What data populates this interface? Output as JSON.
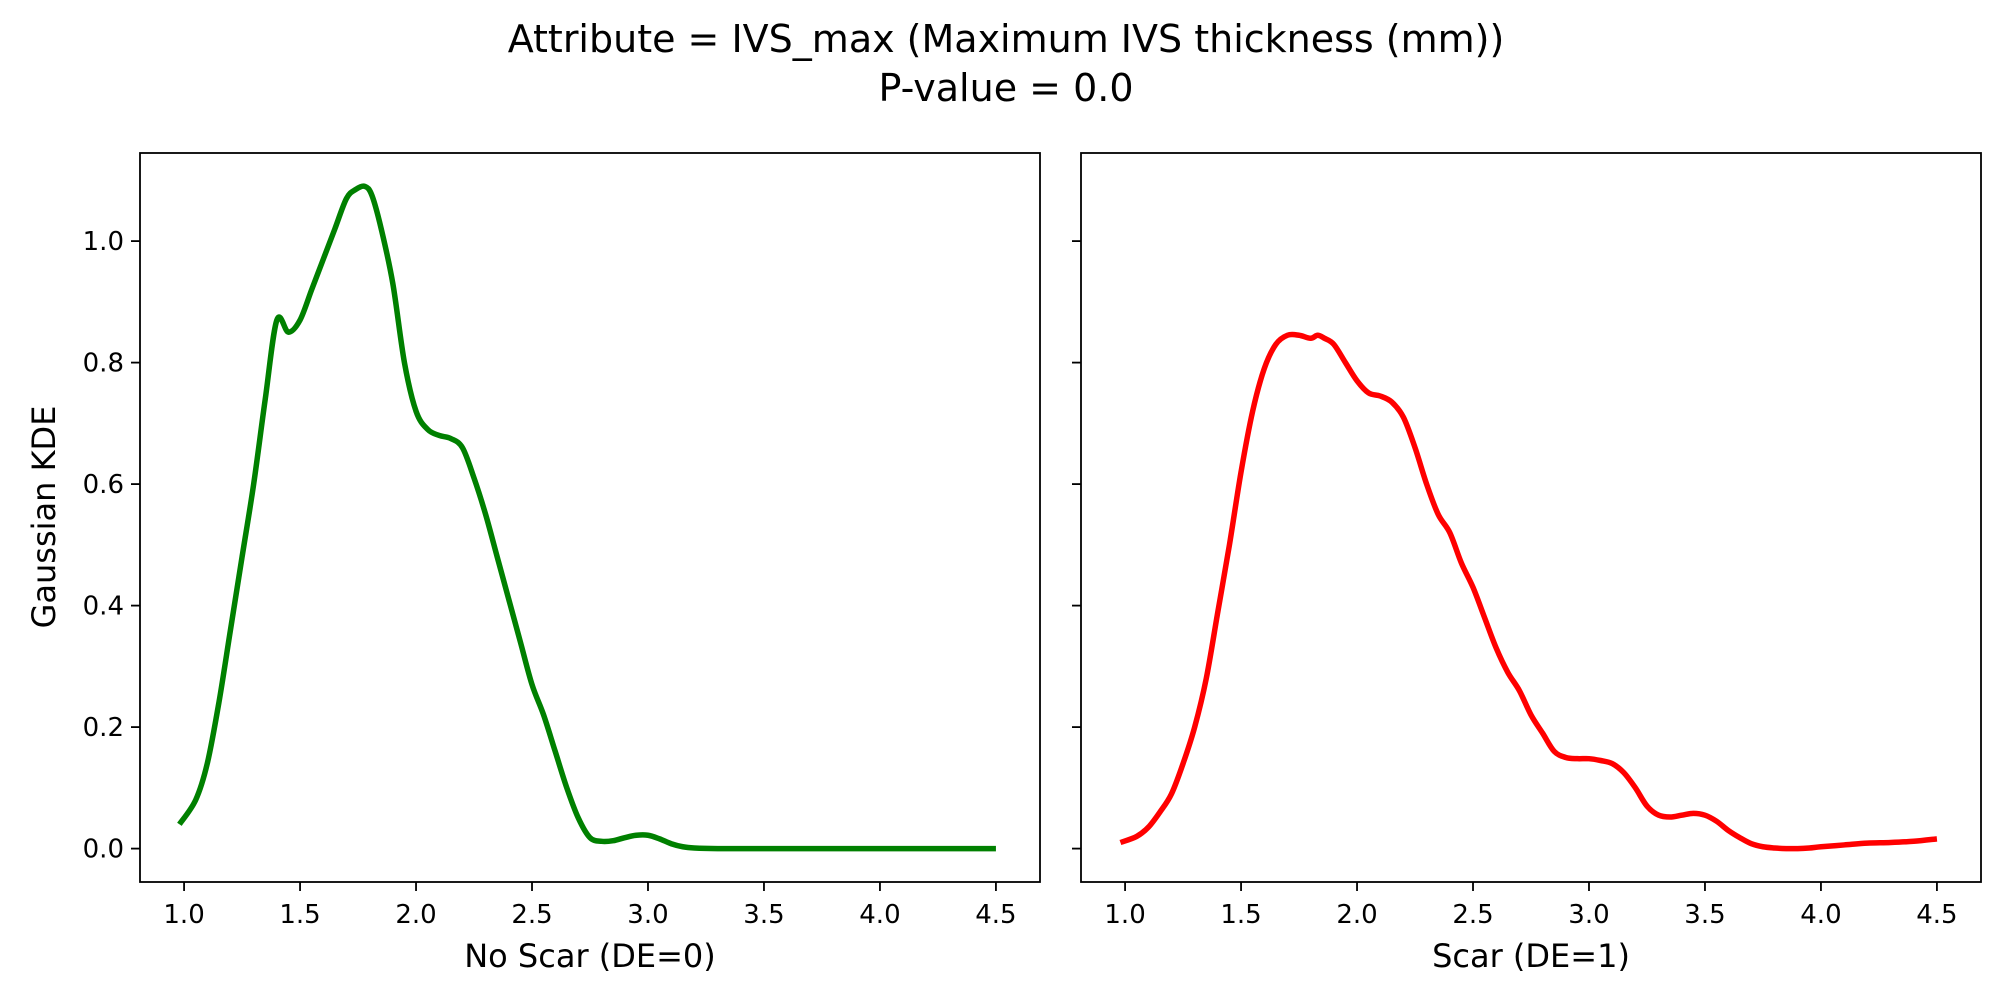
{
  "figure": {
    "title_line1": "Attribute = IVS_max (Maximum IVS thickness (mm))",
    "title_line2": "P-value = 0.0",
    "ylabel": "Gaussian KDE"
  },
  "chart_data": [
    {
      "type": "line",
      "xlabel": "No Scar (DE=0)",
      "ylabel": "Gaussian KDE",
      "xlim": [
        0.81,
        4.69
      ],
      "ylim": [
        -0.055,
        1.145
      ],
      "xticks": [
        1.0,
        1.5,
        2.0,
        2.5,
        3.0,
        3.5,
        4.0,
        4.5
      ],
      "xtick_labels": [
        "1.0",
        "1.5",
        "2.0",
        "2.5",
        "3.0",
        "3.5",
        "4.0",
        "4.5"
      ],
      "yticks": [
        0.0,
        0.2,
        0.4,
        0.6,
        0.8,
        1.0
      ],
      "ytick_labels": [
        "0.0",
        "0.2",
        "0.4",
        "0.6",
        "0.8",
        "1.0"
      ],
      "color": "#008000",
      "series": [
        {
          "x": [
            0.98,
            1.05,
            1.1,
            1.15,
            1.2,
            1.25,
            1.3,
            1.35,
            1.4,
            1.45,
            1.5,
            1.55,
            1.6,
            1.65,
            1.7,
            1.74,
            1.78,
            1.81,
            1.85,
            1.9,
            1.95,
            2.0,
            2.05,
            2.1,
            2.15,
            2.2,
            2.25,
            2.3,
            2.35,
            2.4,
            2.45,
            2.5,
            2.55,
            2.6,
            2.65,
            2.7,
            2.75,
            2.8,
            2.85,
            2.9,
            2.95,
            3.0,
            3.05,
            3.1,
            3.15,
            3.2,
            3.3,
            3.5,
            4.0,
            4.5
          ],
          "y": [
            0.04,
            0.08,
            0.14,
            0.24,
            0.36,
            0.48,
            0.6,
            0.74,
            0.87,
            0.85,
            0.87,
            0.92,
            0.97,
            1.02,
            1.07,
            1.085,
            1.09,
            1.075,
            1.02,
            0.93,
            0.8,
            0.72,
            0.69,
            0.68,
            0.675,
            0.66,
            0.61,
            0.55,
            0.48,
            0.41,
            0.34,
            0.27,
            0.22,
            0.16,
            0.1,
            0.05,
            0.018,
            0.012,
            0.013,
            0.018,
            0.022,
            0.022,
            0.016,
            0.008,
            0.003,
            0.001,
            0.0,
            0.0,
            0.0,
            0.0
          ]
        }
      ]
    },
    {
      "type": "line",
      "xlabel": "Scar (DE=1)",
      "ylabel": "",
      "xlim": [
        0.81,
        4.69
      ],
      "ylim": [
        -0.055,
        1.145
      ],
      "xticks": [
        1.0,
        1.5,
        2.0,
        2.5,
        3.0,
        3.5,
        4.0,
        4.5
      ],
      "xtick_labels": [
        "1.0",
        "1.5",
        "2.0",
        "2.5",
        "3.0",
        "3.5",
        "4.0",
        "4.5"
      ],
      "yticks": [
        0.0,
        0.2,
        0.4,
        0.6,
        0.8,
        1.0
      ],
      "ytick_labels": [],
      "color": "#ff0000",
      "series": [
        {
          "x": [
            0.98,
            1.05,
            1.1,
            1.15,
            1.2,
            1.25,
            1.3,
            1.35,
            1.4,
            1.45,
            1.5,
            1.55,
            1.6,
            1.65,
            1.7,
            1.75,
            1.8,
            1.83,
            1.86,
            1.9,
            1.95,
            2.0,
            2.05,
            2.1,
            2.15,
            2.2,
            2.25,
            2.3,
            2.35,
            2.4,
            2.45,
            2.5,
            2.55,
            2.6,
            2.65,
            2.7,
            2.75,
            2.8,
            2.85,
            2.9,
            2.95,
            3.0,
            3.05,
            3.1,
            3.15,
            3.2,
            3.25,
            3.3,
            3.35,
            3.4,
            3.45,
            3.5,
            3.55,
            3.6,
            3.65,
            3.7,
            3.75,
            3.8,
            3.85,
            3.9,
            3.95,
            4.0,
            4.1,
            4.2,
            4.3,
            4.4,
            4.5
          ],
          "y": [
            0.01,
            0.02,
            0.035,
            0.06,
            0.09,
            0.14,
            0.2,
            0.28,
            0.39,
            0.5,
            0.62,
            0.72,
            0.79,
            0.83,
            0.845,
            0.845,
            0.84,
            0.845,
            0.84,
            0.83,
            0.8,
            0.77,
            0.75,
            0.745,
            0.735,
            0.71,
            0.66,
            0.6,
            0.55,
            0.52,
            0.47,
            0.43,
            0.38,
            0.33,
            0.29,
            0.26,
            0.22,
            0.19,
            0.16,
            0.15,
            0.148,
            0.148,
            0.145,
            0.14,
            0.125,
            0.1,
            0.07,
            0.055,
            0.052,
            0.055,
            0.058,
            0.055,
            0.045,
            0.03,
            0.018,
            0.008,
            0.003,
            0.001,
            0.0,
            0.0,
            0.001,
            0.003,
            0.006,
            0.009,
            0.01,
            0.012,
            0.016
          ]
        }
      ]
    }
  ]
}
